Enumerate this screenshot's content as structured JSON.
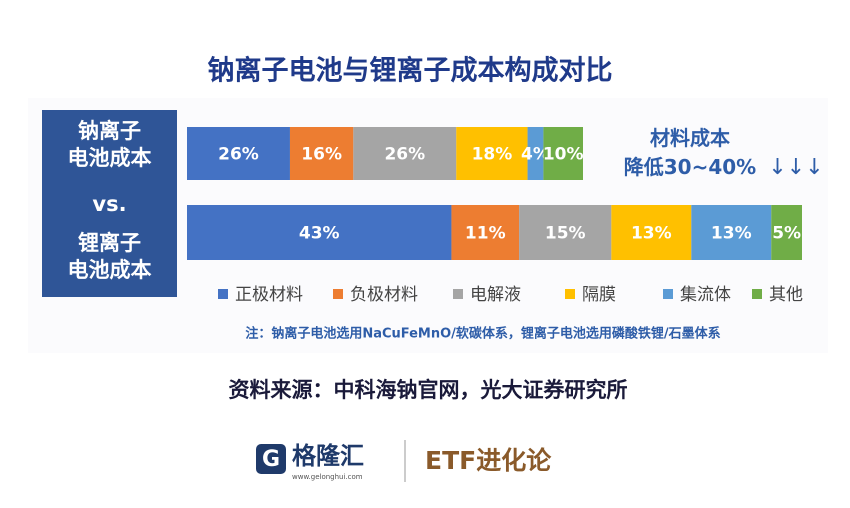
{
  "chart_data": {
    "type": "stacked-bar-horizontal",
    "title": "钠离子电池与锂离子成本构成对比",
    "categories": [
      "钠离子\n电池成本",
      "锂离子\n电池成本"
    ],
    "vs_label": "vs.",
    "series": [
      {
        "name": "正极材料",
        "color": "#4472c4",
        "values": [
          26,
          43
        ],
        "value_labels": [
          "26%",
          "43%"
        ]
      },
      {
        "name": "负极材料",
        "color": "#ed7d31",
        "values": [
          16,
          11
        ],
        "value_labels": [
          "16%",
          "11%"
        ]
      },
      {
        "name": "电解液",
        "color": "#a5a5a5",
        "values": [
          26,
          15
        ],
        "value_labels": [
          "26%",
          "15%"
        ]
      },
      {
        "name": "隔膜",
        "color": "#ffc000",
        "values": [
          18,
          13
        ],
        "value_labels": [
          "18%",
          "13%"
        ]
      },
      {
        "name": "集流体",
        "color": "#5b9bd5",
        "values": [
          4,
          13
        ],
        "value_labels": [
          "4%",
          "13%"
        ]
      },
      {
        "name": "其他",
        "color": "#70ad47",
        "values": [
          10,
          5
        ],
        "value_labels": [
          "10%",
          "5%"
        ]
      }
    ],
    "annotation": "材料成本\n降低30~40%",
    "annotation_arrows": "↓↓↓",
    "note": "注：钠离子电池选用NaCuFeMnO/软碳体系，锂离子电池选用磷酸铁锂/石墨体系",
    "source": "资料来源：中科海钠官网，光大证券研究所"
  },
  "footer": {
    "logo_text": "格隆汇",
    "logo_url": "www.gelonghui.com",
    "brand": "ETF进化论"
  }
}
